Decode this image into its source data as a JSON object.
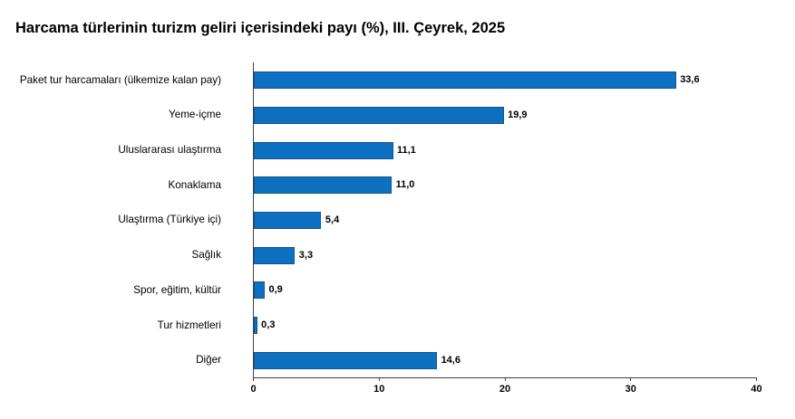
{
  "title": "Harcama türlerinin turizm geliri içerisindeki payı (%), III. Çeyrek, 2025",
  "chart_data": {
    "type": "bar",
    "orientation": "horizontal",
    "title": "Harcama türlerinin turizm geliri içerisindeki payı (%), III. Çeyrek, 2025",
    "categories": [
      "Paket tur harcamaları (ülkemize kalan pay)",
      "Yeme-içme",
      "Uluslararası ulaştırma",
      "Konaklama",
      "Ulaştırma (Türkiye içi)",
      "Sağlık",
      "Spor, eğitim, kültür",
      "Tur hizmetleri",
      "Diğer"
    ],
    "values": [
      33.6,
      19.9,
      11.1,
      11.0,
      5.4,
      3.3,
      0.9,
      0.3,
      14.6
    ],
    "value_labels": [
      "33,6",
      "19,9",
      "11,1",
      "11,0",
      "5,4",
      "3,3",
      "0,9",
      "0,3",
      "14,6"
    ],
    "xlabel": "",
    "ylabel": "",
    "xlim": [
      0,
      40
    ],
    "x_ticks": [
      0,
      10,
      20,
      30,
      40
    ],
    "x_tick_labels": [
      "0",
      "10",
      "20",
      "30",
      "40"
    ],
    "grid": false,
    "legend": false,
    "bar_color": "#0d70c0",
    "bar_border_color": "#14548c",
    "axis_color": "#404040",
    "background_color": "#ffffff"
  }
}
